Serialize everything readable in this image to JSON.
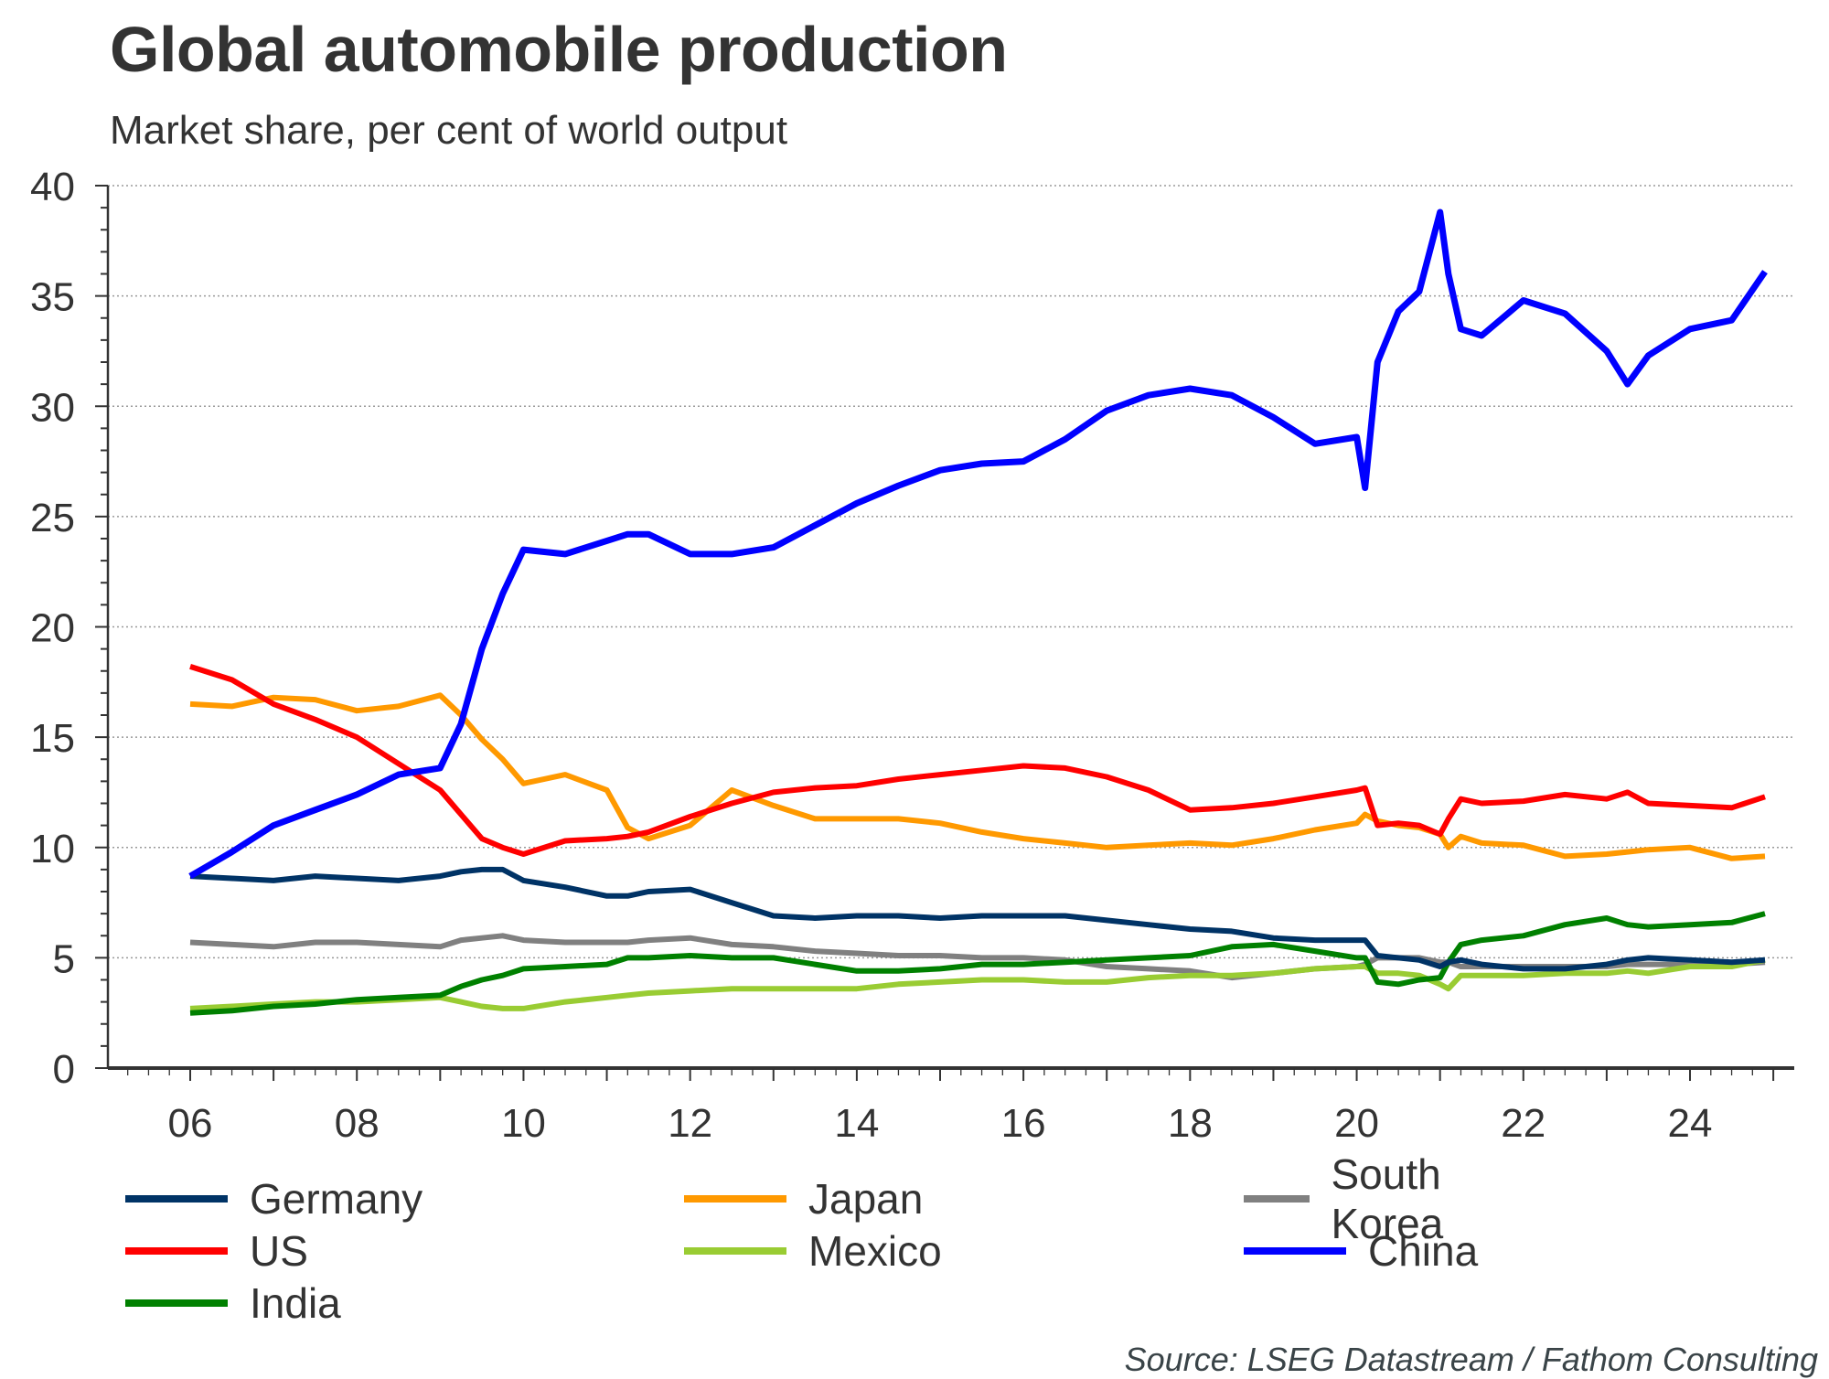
{
  "chart_data": {
    "type": "line",
    "title": "Global automobile production",
    "subtitle": "Market share, per cent of world output",
    "xlabel": "",
    "ylabel": "",
    "ylim": [
      0,
      40
    ],
    "xlim": [
      2006,
      2025
    ],
    "y_ticks": [
      "0",
      "5",
      "10",
      "15",
      "20",
      "25",
      "30",
      "35",
      "40"
    ],
    "y_tick_values": [
      0,
      5,
      10,
      15,
      20,
      25,
      30,
      35,
      40
    ],
    "x_ticks": [
      "06",
      "08",
      "10",
      "12",
      "14",
      "16",
      "18",
      "20",
      "22",
      "24"
    ],
    "x_tick_values": [
      2006,
      2008,
      2010,
      2012,
      2014,
      2016,
      2018,
      2020,
      2022,
      2024
    ],
    "grid": "horizontal dotted",
    "legend_position": "bottom",
    "x": [
      2006.0,
      2006.5,
      2007.0,
      2007.5,
      2008.0,
      2008.5,
      2009.0,
      2009.25,
      2009.5,
      2009.75,
      2010.0,
      2010.5,
      2011.0,
      2011.25,
      2011.5,
      2012.0,
      2012.5,
      2013.0,
      2013.5,
      2014.0,
      2014.5,
      2015.0,
      2015.5,
      2016.0,
      2016.5,
      2017.0,
      2017.5,
      2018.0,
      2018.5,
      2019.0,
      2019.5,
      2020.0,
      2020.1,
      2020.25,
      2020.5,
      2020.75,
      2021.0,
      2021.1,
      2021.25,
      2021.5,
      2022.0,
      2022.5,
      2023.0,
      2023.25,
      2023.5,
      2024.0,
      2024.5,
      2024.9
    ],
    "series": [
      {
        "name": "Germany",
        "color": "#003366",
        "values": [
          8.7,
          8.6,
          8.5,
          8.7,
          8.6,
          8.5,
          8.7,
          8.9,
          9.0,
          9.0,
          8.5,
          8.2,
          7.8,
          7.8,
          8.0,
          8.1,
          7.5,
          6.9,
          6.8,
          6.9,
          6.9,
          6.8,
          6.9,
          6.9,
          6.9,
          6.7,
          6.5,
          6.3,
          6.2,
          5.9,
          5.8,
          5.8,
          5.8,
          5.1,
          5.0,
          4.9,
          4.6,
          4.8,
          4.9,
          4.7,
          4.5,
          4.5,
          4.7,
          4.9,
          5.0,
          4.9,
          4.8,
          4.9
        ]
      },
      {
        "name": "Japan",
        "color": "#FF9900",
        "values": [
          16.5,
          16.4,
          16.8,
          16.7,
          16.2,
          16.4,
          16.9,
          16.0,
          14.9,
          14.0,
          12.9,
          13.3,
          12.6,
          10.9,
          10.4,
          11.0,
          12.6,
          11.9,
          11.3,
          11.3,
          11.3,
          11.1,
          10.7,
          10.4,
          10.2,
          10.0,
          10.1,
          10.2,
          10.1,
          10.4,
          10.8,
          11.1,
          11.5,
          11.2,
          11.0,
          10.9,
          10.6,
          10.0,
          10.5,
          10.2,
          10.1,
          9.6,
          9.7,
          9.8,
          9.9,
          10.0,
          9.5,
          9.6
        ]
      },
      {
        "name": "South Korea",
        "color": "#808080",
        "values": [
          5.7,
          5.6,
          5.5,
          5.7,
          5.7,
          5.6,
          5.5,
          5.8,
          5.9,
          6.0,
          5.8,
          5.7,
          5.7,
          5.7,
          5.8,
          5.9,
          5.6,
          5.5,
          5.3,
          5.2,
          5.1,
          5.1,
          5.0,
          5.0,
          4.9,
          4.6,
          4.5,
          4.4,
          4.1,
          4.3,
          4.5,
          4.6,
          4.7,
          5.0,
          5.0,
          5.0,
          4.8,
          4.8,
          4.6,
          4.6,
          4.6,
          4.6,
          4.6,
          4.7,
          4.7,
          4.7,
          4.7,
          4.8
        ]
      },
      {
        "name": "US",
        "color": "#FF0000",
        "values": [
          18.2,
          17.6,
          16.5,
          15.8,
          15.0,
          13.8,
          12.6,
          11.5,
          10.4,
          10.0,
          9.7,
          10.3,
          10.4,
          10.5,
          10.7,
          11.4,
          12.0,
          12.5,
          12.7,
          12.8,
          13.1,
          13.3,
          13.5,
          13.7,
          13.6,
          13.2,
          12.6,
          11.7,
          11.8,
          12.0,
          12.3,
          12.6,
          12.7,
          11.0,
          11.1,
          11.0,
          10.6,
          11.3,
          12.2,
          12.0,
          12.1,
          12.4,
          12.2,
          12.5,
          12.0,
          11.9,
          11.8,
          12.3
        ]
      },
      {
        "name": "Mexico",
        "color": "#99CC33",
        "values": [
          2.7,
          2.8,
          2.9,
          3.0,
          3.0,
          3.1,
          3.2,
          3.0,
          2.8,
          2.7,
          2.7,
          3.0,
          3.2,
          3.3,
          3.4,
          3.5,
          3.6,
          3.6,
          3.6,
          3.6,
          3.8,
          3.9,
          4.0,
          4.0,
          3.9,
          3.9,
          4.1,
          4.2,
          4.2,
          4.3,
          4.5,
          4.6,
          4.6,
          4.3,
          4.3,
          4.2,
          3.8,
          3.6,
          4.2,
          4.2,
          4.2,
          4.3,
          4.3,
          4.4,
          4.3,
          4.6,
          4.6,
          4.9
        ]
      },
      {
        "name": "China",
        "color": "#0000FF",
        "values": [
          8.7,
          9.8,
          11.0,
          11.7,
          12.4,
          13.3,
          13.6,
          15.6,
          19.0,
          21.5,
          23.5,
          23.3,
          23.9,
          24.2,
          24.2,
          23.3,
          23.3,
          23.6,
          24.6,
          25.6,
          26.4,
          27.1,
          27.4,
          27.5,
          28.5,
          29.8,
          30.5,
          30.8,
          30.5,
          29.5,
          28.3,
          28.6,
          26.3,
          32.0,
          34.3,
          35.2,
          38.8,
          36.0,
          33.5,
          33.2,
          34.8,
          34.2,
          32.5,
          31.0,
          32.3,
          33.5,
          33.9,
          36.1
        ]
      },
      {
        "name": "India",
        "color": "#008000",
        "values": [
          2.5,
          2.6,
          2.8,
          2.9,
          3.1,
          3.2,
          3.3,
          3.7,
          4.0,
          4.2,
          4.5,
          4.6,
          4.7,
          5.0,
          5.0,
          5.1,
          5.0,
          5.0,
          4.7,
          4.4,
          4.4,
          4.5,
          4.7,
          4.7,
          4.8,
          4.9,
          5.0,
          5.1,
          5.5,
          5.6,
          5.3,
          5.0,
          5.0,
          3.9,
          3.8,
          4.0,
          4.1,
          4.8,
          5.6,
          5.8,
          6.0,
          6.5,
          6.8,
          6.5,
          6.4,
          6.5,
          6.6,
          7.0
        ]
      }
    ]
  },
  "legend": [
    {
      "label": "Germany",
      "color": "#003366"
    },
    {
      "label": "Japan",
      "color": "#FF9900"
    },
    {
      "label": "South Korea",
      "color": "#808080"
    },
    {
      "label": "US",
      "color": "#FF0000"
    },
    {
      "label": "Mexico",
      "color": "#99CC33"
    },
    {
      "label": "China",
      "color": "#0000FF"
    },
    {
      "label": "India",
      "color": "#008000"
    }
  ],
  "source": "Source: LSEG Datastream / Fathom Consulting"
}
